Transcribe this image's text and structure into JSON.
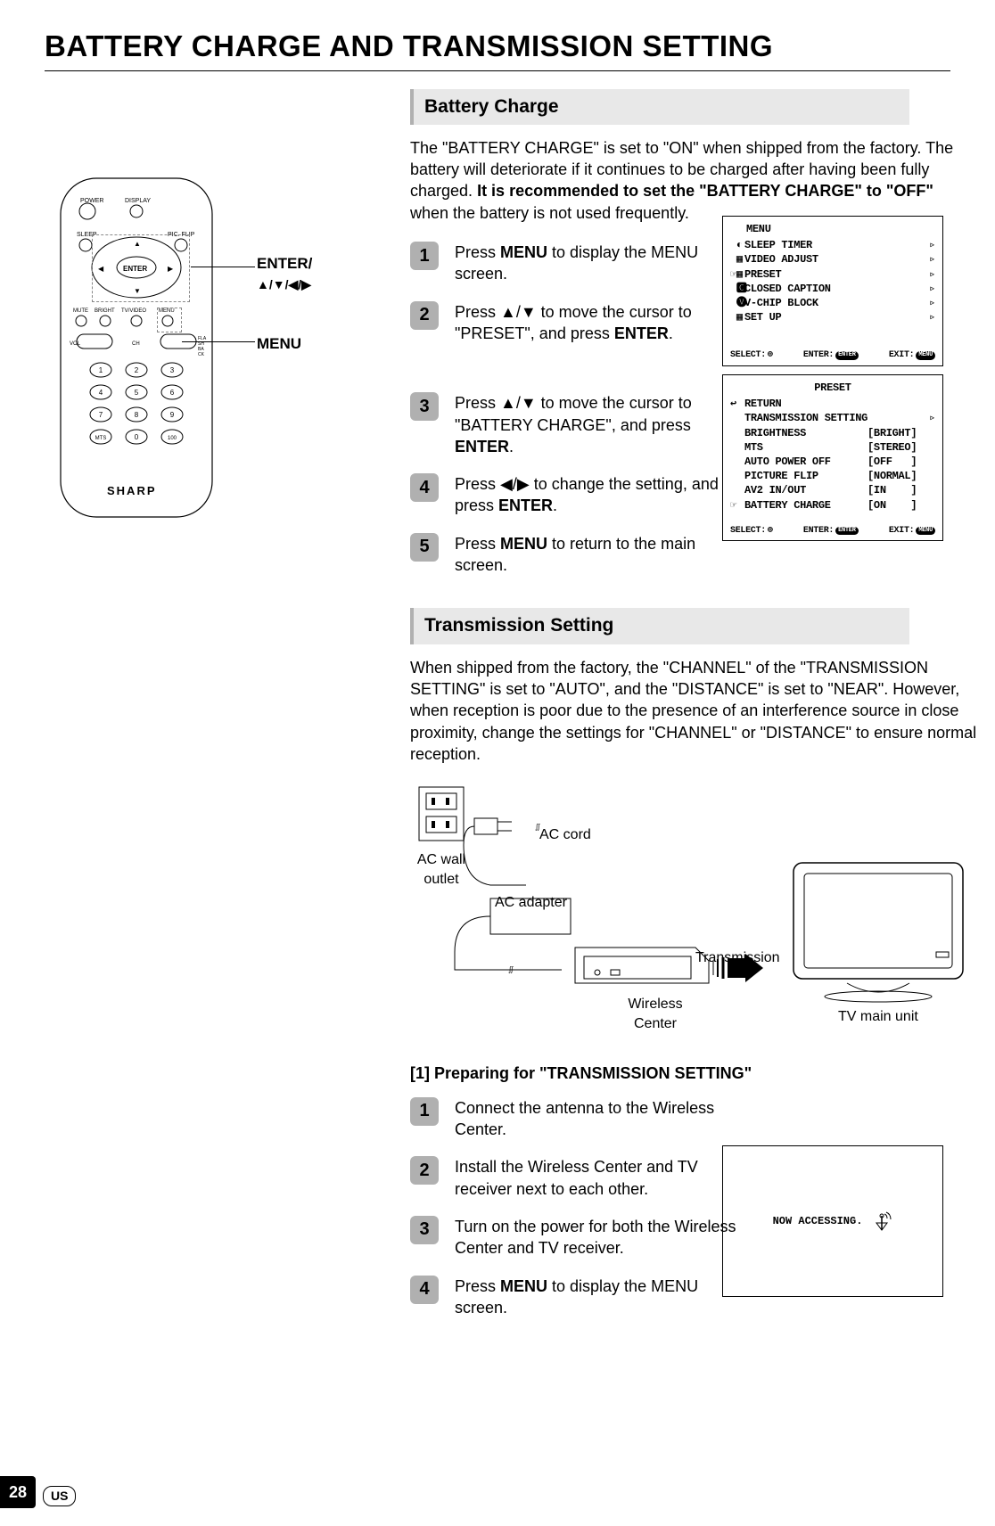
{
  "page": {
    "title": "BATTERY CHARGE AND TRANSMISSION SETTING",
    "page_number": "28",
    "locale_badge": "US"
  },
  "sections": {
    "battery_charge": {
      "heading": "Battery Charge",
      "intro_plain1": "The \"BATTERY CHARGE\" is set to \"ON\" when shipped from the factory. The battery will deteriorate if it continues to be charged after having been fully charged. ",
      "intro_bold": "It is recommended to set the \"BATTERY CHARGE\" to \"OFF\"",
      "intro_plain2": " when the battery is not used frequently.",
      "steps": [
        {
          "n": "1",
          "pre": "Press ",
          "bold": "MENU",
          "post": " to display the MENU screen."
        },
        {
          "n": "2",
          "pre": "Press ▲/▼ to move the cursor to \"PRESET\", and press ",
          "bold": "ENTER",
          "post": "."
        },
        {
          "n": "3",
          "pre": "Press ▲/▼ to move the cursor to \"BATTERY CHARGE\", and press ",
          "bold": "ENTER",
          "post": "."
        },
        {
          "n": "4",
          "pre": "Press ◀/▶ to change the setting, and press ",
          "bold": "ENTER",
          "post": "."
        },
        {
          "n": "5",
          "pre": "Press ",
          "bold": "MENU",
          "post": " to return to the main screen."
        }
      ]
    },
    "transmission": {
      "heading": "Transmission Setting",
      "intro": "When shipped from the factory, the \"CHANNEL\" of the \"TRANSMISSION SETTING\" is set to \"AUTO\", and the \"DISTANCE\" is set to \"NEAR\".  However, when reception is poor due to the presence of an interference source in close proximity, change the settings for \"CHANNEL\" or \"DISTANCE\" to ensure normal reception.",
      "diagram_labels": {
        "ac_wall_outlet": "AC wall outlet",
        "ac_cord": "AC cord",
        "ac_adapter": "AC adapter",
        "transmission": "Transmission",
        "wireless_center": "Wireless Center",
        "tv_main_unit": "TV main unit"
      },
      "sub_heading": "[1] Preparing for \"TRANSMISSION SETTING\"",
      "steps": [
        {
          "n": "1",
          "text": "Connect the antenna to the Wireless Center."
        },
        {
          "n": "2",
          "text": "Install the Wireless Center and TV receiver next to each other."
        },
        {
          "n": "3",
          "text": "Turn on the power for both the Wireless Center and TV receiver."
        },
        {
          "n": "4",
          "pre": "Press ",
          "bold": "MENU",
          "post": " to display the MENU screen."
        }
      ],
      "now_accessing": "NOW ACCESSING."
    }
  },
  "remote_labels": {
    "enter": "ENTER/",
    "arrows": "▲/▼/◀/▶",
    "menu": "MENU",
    "brand": "SHARP"
  },
  "osd_menu": {
    "title": "MENU",
    "items": [
      {
        "icon": "◐",
        "label": "SLEEP TIMER"
      },
      {
        "icon": "▦",
        "label": "VIDEO ADJUST"
      },
      {
        "icon": "▦",
        "label": "PRESET",
        "prefix": "☞"
      },
      {
        "icon": "🅲",
        "label": "CLOSED CAPTION"
      },
      {
        "icon": "🅥",
        "label": "V-CHIP BLOCK"
      },
      {
        "icon": "▦",
        "label": "SET UP"
      }
    ],
    "bottom": {
      "select": "SELECT:",
      "enter": "ENTER:",
      "enter_pill": "ENTER",
      "exit": "EXIT:",
      "exit_pill": "MENU"
    }
  },
  "osd_preset": {
    "title": "PRESET",
    "items": [
      {
        "prefix": "↩",
        "label": "RETURN",
        "val": ""
      },
      {
        "prefix": "",
        "label": "TRANSMISSION SETTING",
        "val": "",
        "arrow": "▹"
      },
      {
        "prefix": "",
        "label": "BRIGHTNESS",
        "val": "[BRIGHT]"
      },
      {
        "prefix": "",
        "label": "MTS",
        "val": "[STEREO]"
      },
      {
        "prefix": "",
        "label": "AUTO POWER OFF",
        "val": "[OFF   ]"
      },
      {
        "prefix": "",
        "label": "PICTURE FLIP",
        "val": "[NORMAL]"
      },
      {
        "prefix": "",
        "label": "AV2 IN/OUT",
        "val": "[IN    ]"
      },
      {
        "prefix": "☞",
        "label": "BATTERY CHARGE",
        "val": "[ON    ]"
      }
    ],
    "bottom": {
      "select": "SELECT:",
      "enter": "ENTER:",
      "enter_pill": "ENTER",
      "exit": "EXIT:",
      "exit_pill": "MENU"
    }
  },
  "colors": {
    "heading_bg": "#e8e8e8",
    "heading_border": "#b0b0b0",
    "step_bg": "#b0b0b0",
    "text": "#000000",
    "bg": "#ffffff"
  }
}
